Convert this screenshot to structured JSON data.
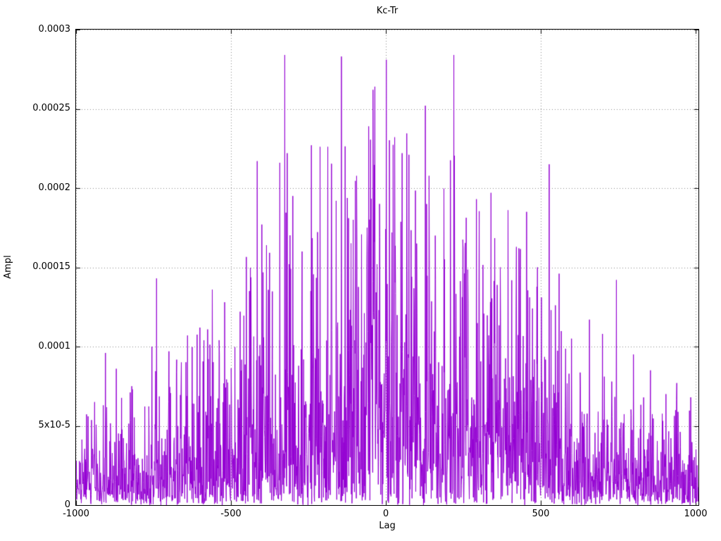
{
  "chart_data": {
    "type": "line",
    "title": "Kc-Tr",
    "xlabel": "Lag",
    "ylabel": "Ampl",
    "xlim": [
      -1000,
      1010
    ],
    "ylim": [
      0,
      0.0003
    ],
    "grid": true,
    "legend": "none",
    "line_color": "#9400d3",
    "background_color": "#ffffff",
    "x_ticks": [
      {
        "value": -1000,
        "label": "-1000"
      },
      {
        "value": -500,
        "label": "-500"
      },
      {
        "value": 0,
        "label": "0"
      },
      {
        "value": 500,
        "label": "500"
      },
      {
        "value": 1000,
        "label": "1000"
      }
    ],
    "y_ticks": [
      {
        "value": 0,
        "label": "0"
      },
      {
        "value": 5e-05,
        "label": "5x10-5"
      },
      {
        "value": 0.0001,
        "label": "0.0001"
      },
      {
        "value": 0.00015,
        "label": "0.00015"
      },
      {
        "value": 0.0002,
        "label": "0.0002"
      },
      {
        "value": 0.00025,
        "label": "0.00025"
      },
      {
        "value": 0.0003,
        "label": "0.0003"
      }
    ],
    "series": [
      {
        "name": "Kc-Tr",
        "description": "Dense noisy positive spike train (cross-correlation amplitude vs lag). Amplitude envelope is largest near lag 0 (typical 0.00005-0.00015, extremes to ~0.000285) and decays toward ~0.00002-0.00006 at lags +/-1000.",
        "noise_model": {
          "seed": 1337,
          "step": 1,
          "base": 1.55e-05,
          "amp": 4.6e-05,
          "sigma": 520,
          "clip": 4.0
        },
        "peaks": [
          {
            "x": -940,
            "y": 6.5e-05
          },
          {
            "x": -905,
            "y": 9.6e-05
          },
          {
            "x": -870,
            "y": 8.6e-05
          },
          {
            "x": -820,
            "y": 7.5e-05
          },
          {
            "x": -755,
            "y": 0.0001
          },
          {
            "x": -740,
            "y": 0.000143
          },
          {
            "x": -700,
            "y": 9.7e-05
          },
          {
            "x": -660,
            "y": 9e-05
          },
          {
            "x": -640,
            "y": 0.000107
          },
          {
            "x": -600,
            "y": 0.000112
          },
          {
            "x": -560,
            "y": 0.000136
          },
          {
            "x": -520,
            "y": 0.000128
          },
          {
            "x": -470,
            "y": 0.000122
          },
          {
            "x": -440,
            "y": 0.000135
          },
          {
            "x": -415,
            "y": 0.000217
          },
          {
            "x": -400,
            "y": 0.000177
          },
          {
            "x": -385,
            "y": 0.000164
          },
          {
            "x": -342,
            "y": 0.000216
          },
          {
            "x": -326,
            "y": 0.000284
          },
          {
            "x": -318,
            "y": 0.000222
          },
          {
            "x": -300,
            "y": 0.000195
          },
          {
            "x": -270,
            "y": 0.00016
          },
          {
            "x": -240,
            "y": 0.000227
          },
          {
            "x": -212,
            "y": 0.000226
          },
          {
            "x": -187,
            "y": 0.000226
          },
          {
            "x": -160,
            "y": 0.000192
          },
          {
            "x": -143,
            "y": 0.000283
          },
          {
            "x": -120,
            "y": 0.000181
          },
          {
            "x": -105,
            "y": 0.00018
          },
          {
            "x": -60,
            "y": 0.000175
          },
          {
            "x": -41,
            "y": 0.000262
          },
          {
            "x": -20,
            "y": 0.00019
          },
          {
            "x": 2,
            "y": 0.000281
          },
          {
            "x": 20,
            "y": 0.000172
          },
          {
            "x": 53,
            "y": 0.000222
          },
          {
            "x": 75,
            "y": 0.000221
          },
          {
            "x": 100,
            "y": 0.000165
          },
          {
            "x": 128,
            "y": 0.000252
          },
          {
            "x": 160,
            "y": 0.00017
          },
          {
            "x": 190,
            "y": 0.000155
          },
          {
            "x": 220,
            "y": 0.000284
          },
          {
            "x": 250,
            "y": 0.000162
          },
          {
            "x": 293,
            "y": 0.000193
          },
          {
            "x": 340,
            "y": 0.000197
          },
          {
            "x": 370,
            "y": 0.00015
          },
          {
            "x": 395,
            "y": 0.000186
          },
          {
            "x": 430,
            "y": 0.000162
          },
          {
            "x": 455,
            "y": 0.000185
          },
          {
            "x": 490,
            "y": 0.00015
          },
          {
            "x": 528,
            "y": 0.000215
          },
          {
            "x": 560,
            "y": 0.000146
          },
          {
            "x": 600,
            "y": 0.000105
          },
          {
            "x": 658,
            "y": 0.000117
          },
          {
            "x": 700,
            "y": 0.000108
          },
          {
            "x": 745,
            "y": 0.000142
          },
          {
            "x": 800,
            "y": 9.5e-05
          },
          {
            "x": 855,
            "y": 8.5e-05
          },
          {
            "x": 905,
            "y": 7e-05
          },
          {
            "x": 940,
            "y": 7.7e-05
          },
          {
            "x": 985,
            "y": 6.8e-05
          }
        ]
      }
    ]
  }
}
